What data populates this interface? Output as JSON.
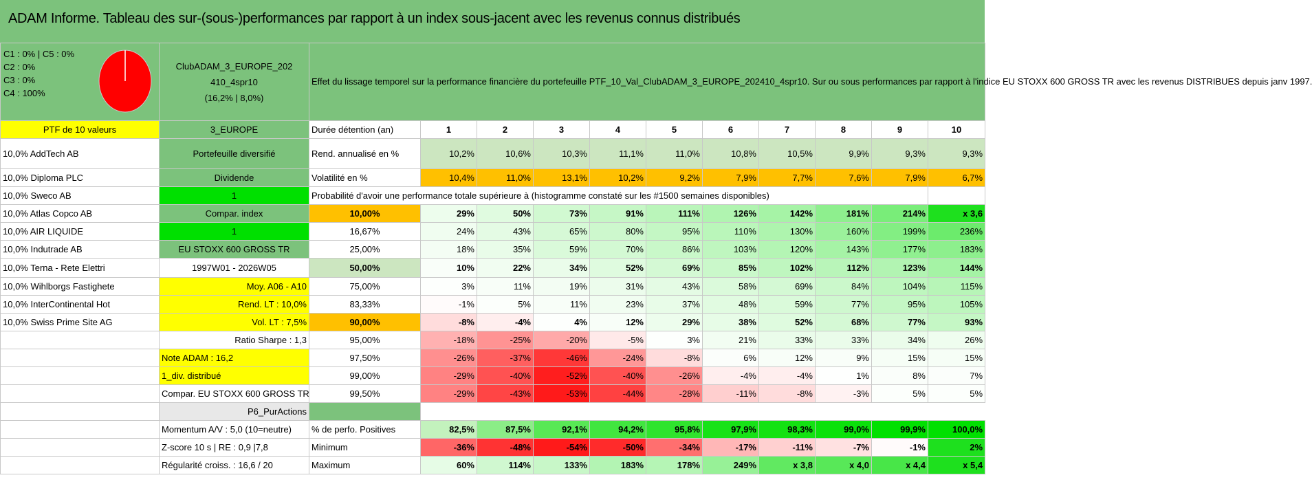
{
  "title": "ADAM Informe. Tableau des sur-(sous-)performances par rapport à un index sous-jacent avec les revenus connus distribués",
  "top_left": {
    "lines": [
      "C1 : 0% | C5 : 0%",
      "C2 : 0%",
      "C3 : 0%",
      "C4 : 100%"
    ],
    "pie_color": "#ff0000"
  },
  "club": {
    "line1": "ClubADAM_3_EUROPE_202",
    "line2": "410_4spr10",
    "line3": "(16,2% | 8,0%)"
  },
  "effet_text": "Effet du lissage temporel sur la performance financière du portefeuille PTF_10_Val_ClubADAM_3_EUROPE_202410_4spr10. Sur ou sous performances par rapport à l'indice EU STOXX 600 GROSS TR avec les revenus DISTRIBUES depuis janv 1997.",
  "header": {
    "ptf": "PTF de 10 valeurs",
    "region": "3_EUROPE",
    "duree": "Durée détention (an)",
    "years": [
      "1",
      "2",
      "3",
      "4",
      "5",
      "6",
      "7",
      "8",
      "9",
      "10"
    ]
  },
  "holdings": [
    "10,0% AddTech AB",
    "10,0% Diploma PLC",
    "10,0% Sweco AB",
    "10,0% Atlas Copco AB",
    "10,0% AIR LIQUIDE",
    "10,0% Indutrade AB",
    "10,0% Terna - Rete Elettri",
    "10,0% Wihlborgs Fastighete",
    "10,0% InterContinental Hot",
    "10,0% Swiss Prime Site AG"
  ],
  "side": {
    "portefeuille": "Portefeuille diversifié",
    "dividende": "Dividende",
    "one_a": "1",
    "compar_index": "Compar. index",
    "one_b": "1",
    "index_name": "EU STOXX 600 GROSS TR",
    "period": "1997W01 - 2026W05",
    "moy": "Moy. A06 - A10",
    "rend_lt": "Rend. LT : 10,0%",
    "vol_lt": "Vol. LT : 7,5%",
    "sharpe": "Ratio Sharpe : 1,3",
    "note": "Note ADAM : 16,2",
    "div": "1_div. distribué",
    "compar_eu": "Compar. EU STOXX 600 GROSS TR",
    "p6": "P6_PurActions",
    "momentum": "Momentum A/V : 5,0 (10=neutre)",
    "zscore": "Z-score 10 s | RE : 0,9 |7,8",
    "regularite": "Régularité croiss. : 16,6 / 20"
  },
  "rend": {
    "label": "Rend. annualisé en %",
    "values": [
      "10,2%",
      "10,6%",
      "10,3%",
      "11,1%",
      "11,0%",
      "10,8%",
      "10,5%",
      "9,9%",
      "9,3%",
      "9,3%"
    ]
  },
  "vol": {
    "label": "Volatilité en %",
    "values": [
      "10,4%",
      "11,0%",
      "13,1%",
      "10,2%",
      "9,2%",
      "7,9%",
      "7,7%",
      "7,6%",
      "7,9%",
      "6,7%"
    ]
  },
  "prob_title": "Probabilité d'avoir une performance totale supérieure à (histogramme constaté sur les #1500 semaines disponibles)",
  "prob_rows": [
    {
      "p": "10,00%",
      "v": [
        "29%",
        "50%",
        "73%",
        "91%",
        "111%",
        "126%",
        "142%",
        "181%",
        "214%",
        "x 3,6"
      ]
    },
    {
      "p": "16,67%",
      "v": [
        "24%",
        "43%",
        "65%",
        "80%",
        "95%",
        "110%",
        "130%",
        "160%",
        "199%",
        "236%"
      ]
    },
    {
      "p": "25,00%",
      "v": [
        "18%",
        "35%",
        "59%",
        "70%",
        "86%",
        "103%",
        "120%",
        "143%",
        "177%",
        "183%"
      ]
    },
    {
      "p": "50,00%",
      "v": [
        "10%",
        "22%",
        "34%",
        "52%",
        "69%",
        "85%",
        "102%",
        "112%",
        "123%",
        "144%"
      ]
    },
    {
      "p": "75,00%",
      "v": [
        "3%",
        "11%",
        "19%",
        "31%",
        "43%",
        "58%",
        "69%",
        "84%",
        "104%",
        "115%"
      ]
    },
    {
      "p": "83,33%",
      "v": [
        "-1%",
        "5%",
        "11%",
        "23%",
        "37%",
        "48%",
        "59%",
        "77%",
        "95%",
        "105%"
      ]
    },
    {
      "p": "90,00%",
      "v": [
        "-8%",
        "-4%",
        "4%",
        "12%",
        "29%",
        "38%",
        "52%",
        "68%",
        "77%",
        "93%"
      ]
    },
    {
      "p": "95,00%",
      "v": [
        "-18%",
        "-25%",
        "-20%",
        "-5%",
        "3%",
        "21%",
        "33%",
        "33%",
        "34%",
        "26%"
      ]
    },
    {
      "p": "97,50%",
      "v": [
        "-26%",
        "-37%",
        "-46%",
        "-24%",
        "-8%",
        "6%",
        "12%",
        "9%",
        "15%",
        "15%"
      ]
    },
    {
      "p": "99,00%",
      "v": [
        "-29%",
        "-40%",
        "-52%",
        "-40%",
        "-26%",
        "-4%",
        "-4%",
        "1%",
        "8%",
        "7%"
      ]
    },
    {
      "p": "99,50%",
      "v": [
        "-29%",
        "-43%",
        "-53%",
        "-44%",
        "-28%",
        "-11%",
        "-8%",
        "-3%",
        "5%",
        "5%"
      ]
    }
  ],
  "pos": {
    "label": "% de perfo. Positives",
    "values": [
      "82,5%",
      "87,5%",
      "92,1%",
      "94,2%",
      "95,8%",
      "97,9%",
      "98,3%",
      "99,0%",
      "99,9%",
      "100,0%"
    ]
  },
  "min": {
    "label": "Minimum",
    "values": [
      "-36%",
      "-48%",
      "-54%",
      "-50%",
      "-34%",
      "-17%",
      "-11%",
      "-7%",
      "-1%",
      "2%"
    ]
  },
  "max": {
    "label": "Maximum",
    "values": [
      "60%",
      "114%",
      "133%",
      "183%",
      "178%",
      "249%",
      "x 3,8",
      "x 4,0",
      "x 4,4",
      "x 5,4"
    ]
  }
}
